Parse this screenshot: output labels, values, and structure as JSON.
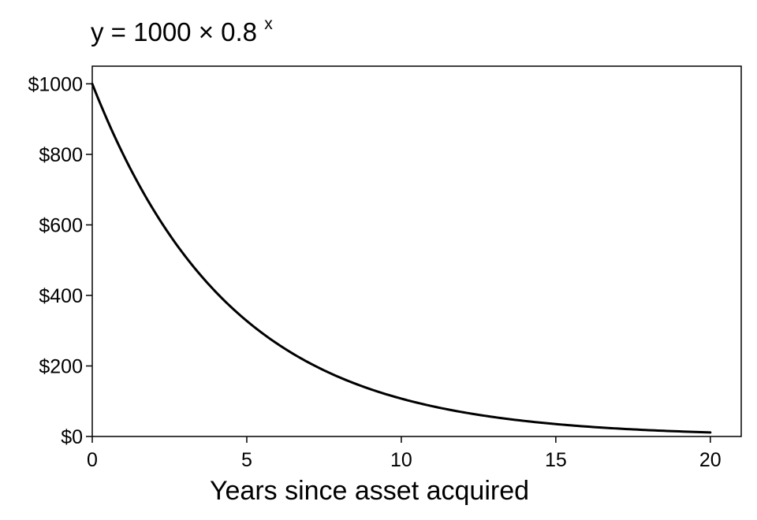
{
  "chart_data": {
    "type": "line",
    "title": {
      "prefix": "y = 1000 × 0.8",
      "exponent": "x"
    },
    "xlabel": "Years since asset acquired",
    "ylabel": "",
    "xlim": [
      0,
      21
    ],
    "ylim": [
      0,
      1050
    ],
    "x_ticks": [
      0,
      5,
      10,
      15,
      20
    ],
    "x_tick_labels": [
      "0",
      "5",
      "10",
      "15",
      "20"
    ],
    "y_ticks": [
      0,
      200,
      400,
      600,
      800,
      1000
    ],
    "y_tick_labels": [
      "$0",
      "$200",
      "$400",
      "$600",
      "$800",
      "$1000"
    ],
    "grid": false,
    "line_color": "#000000",
    "series": [
      {
        "x": [
          0,
          1,
          2,
          3,
          4,
          5,
          6,
          7,
          8,
          9,
          10,
          11,
          12,
          13,
          14,
          15,
          16,
          17,
          18,
          19,
          20
        ],
        "values": [
          1000,
          800,
          640,
          512,
          409.6,
          327.68,
          262.14,
          209.72,
          167.77,
          134.22,
          107.37,
          85.9,
          68.72,
          54.98,
          43.98,
          35.18,
          28.15,
          22.52,
          18.01,
          14.41,
          11.53
        ]
      }
    ]
  }
}
